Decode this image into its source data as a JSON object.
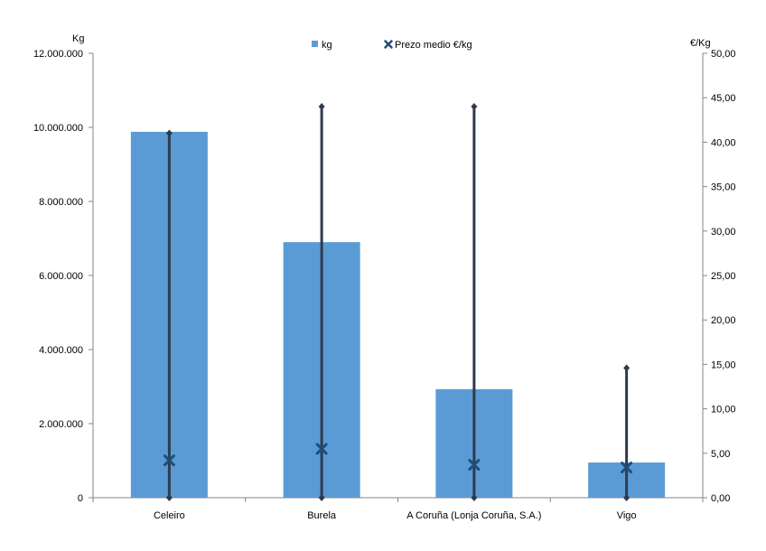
{
  "chart_data": {
    "type": "bar",
    "categories": [
      "Celeiro",
      "Burela",
      "A Coruña (Lonja Coruña, S.A.)",
      "Vigo"
    ],
    "series": [
      {
        "name": "kg",
        "axis": "left",
        "values": [
          9880000,
          6900000,
          2930000,
          950000
        ]
      },
      {
        "name": "Prezo medio €/kg",
        "axis": "right",
        "kind": "point",
        "marker": "x",
        "values": [
          4.2,
          5.5,
          3.7,
          3.4
        ],
        "low": [
          0,
          0,
          0,
          0
        ],
        "high": [
          41.0,
          44.0,
          44.0,
          14.6
        ]
      }
    ],
    "ylabel": "Kg",
    "ylabel_right": "€/Kg",
    "ylim": [
      0,
      12000000
    ],
    "ylim_right": [
      0,
      50
    ],
    "yticks": [
      "0",
      "2.000.000",
      "4.000.000",
      "6.000.000",
      "8.000.000",
      "10.000.000",
      "12.000.000"
    ],
    "yticks_right": [
      "0,00",
      "5,00",
      "10,00",
      "15,00",
      "20,00",
      "25,00",
      "30,00",
      "35,00",
      "40,00",
      "45,00",
      "50,00"
    ],
    "legend_position": "top",
    "grid": false,
    "colors": {
      "bar": "#5B9BD5",
      "marker": "#1F4E79",
      "range_line": "#2F3B4C",
      "axis": "#868686"
    }
  }
}
